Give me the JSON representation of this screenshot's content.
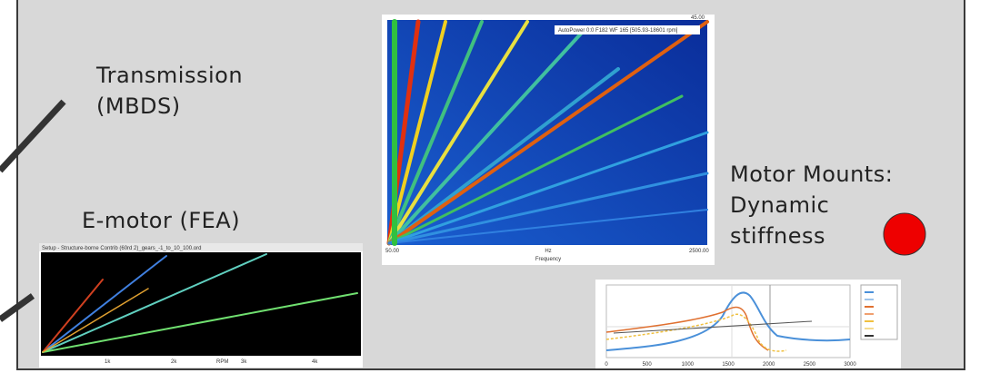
{
  "labels": {
    "transmission": [
      "Transmission",
      "(MBDS)"
    ],
    "emotor": "E-motor (FEA)",
    "mounts": [
      "Motor Mounts:",
      "Dynamic",
      "stiffness"
    ]
  },
  "spectrogram": {
    "title": "AutoPower 0:0 F182 WF 165 [505.93-18601 rpm]",
    "x_start": "50.00",
    "x_end": "2500.00",
    "unit": "Hz",
    "x_label": "Frequency",
    "corner": "45.00"
  },
  "emotor_plot": {
    "title": "Setup - Structure-borne Contrib (60rd 2)_gears_-1_to_10_100.ord",
    "x_ticks": [
      "1k",
      "2k",
      "3k",
      "4k"
    ],
    "x_label": "RPM"
  },
  "stiffness_plot": {
    "x_ticks": [
      0,
      500,
      1000,
      1500,
      2000,
      2500,
      3000
    ]
  }
}
